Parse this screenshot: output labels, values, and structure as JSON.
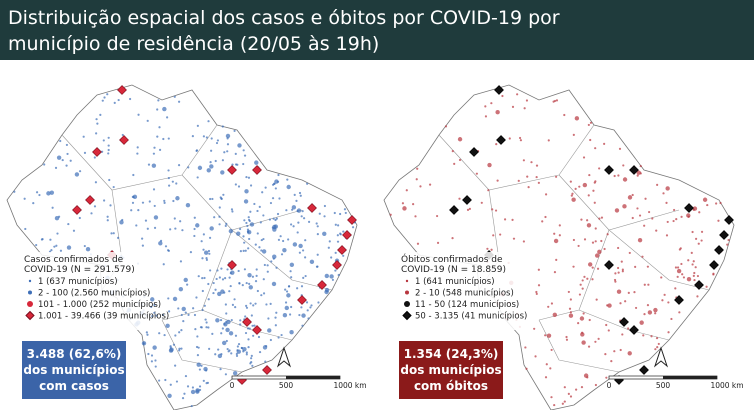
{
  "header": {
    "title_lines": [
      "Distribuição espacial dos casos e óbitos por COVID-19 por",
      "município de residência (20/05 às 19h)"
    ]
  },
  "maps": [
    {
      "legend": {
        "title_lines": [
          "Casos confirmados de",
          "COVID-19 (N = 291.579)"
        ],
        "items": [
          "1 (637 municípios)",
          "2 - 100 (2.560 municípios)",
          "101 - 1.000 (252 municípios)",
          "1.001 - 39.466 (39 municípios)"
        ]
      },
      "callout": {
        "lines": [
          "3.488 (62,6%)",
          "dos municípios",
          "com casos"
        ]
      },
      "scale": [
        "0",
        "500",
        "1000 km"
      ]
    },
    {
      "legend": {
        "title_lines": [
          "Óbitos confirmados de",
          "COVID-19 (N = 18.859)"
        ],
        "items": [
          "1 (641 municípios)",
          "2 - 10 (548 municípios)",
          "11 - 50 (124 municípios)",
          "50 - 3.135 (41 municípios)"
        ]
      },
      "callout": {
        "lines": [
          "1.354 (24,3%)",
          "dos municípios",
          "com óbitos"
        ]
      },
      "scale": [
        "0",
        "500",
        "1000 km"
      ]
    }
  ]
}
